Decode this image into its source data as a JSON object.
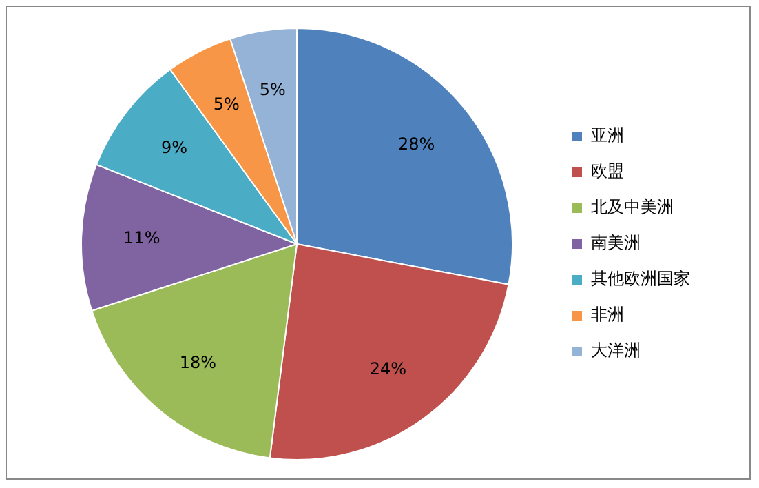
{
  "chart_data": {
    "type": "pie",
    "categories": [
      "亚洲",
      "欧盟",
      "北及中美洲",
      "南美洲",
      "其他欧洲国家",
      "非洲",
      "大洋洲"
    ],
    "values": [
      28,
      24,
      18,
      11,
      9,
      5,
      5
    ],
    "value_labels": [
      "28%",
      "24%",
      "18%",
      "11%",
      "9%",
      "5%",
      "5%"
    ],
    "colors": [
      "#4f81bd",
      "#c0504d",
      "#9bbb59",
      "#8064a2",
      "#4bacc6",
      "#f79646",
      "#95b3d7"
    ],
    "legend": "right"
  }
}
